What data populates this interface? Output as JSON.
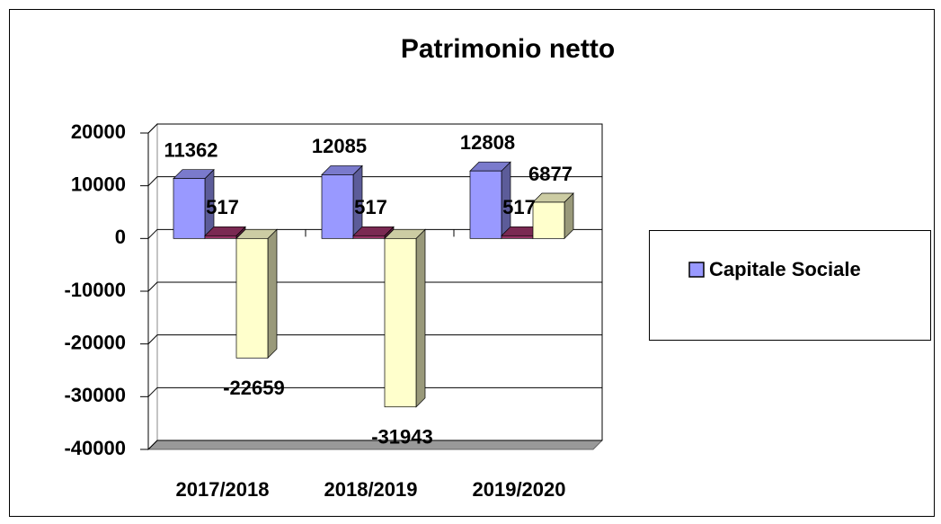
{
  "chart_data": {
    "type": "bar3d",
    "title": "Patrimonio netto",
    "categories": [
      "2017/2018",
      "2018/2019",
      "2019/2020"
    ],
    "series": [
      {
        "name": "Capitale Sociale",
        "color": "#9999ff",
        "values": [
          11362,
          12085,
          12808
        ]
      },
      {
        "color": "#993366",
        "values": [
          517,
          517,
          517
        ]
      },
      {
        "color": "#ffffcc",
        "values": [
          -22659,
          -31943,
          6877
        ]
      }
    ],
    "ylim": [
      -40000,
      20000
    ],
    "yticks": [
      -40000,
      -30000,
      -20000,
      -10000,
      0,
      10000,
      20000
    ],
    "grid": true,
    "legend": "right"
  }
}
